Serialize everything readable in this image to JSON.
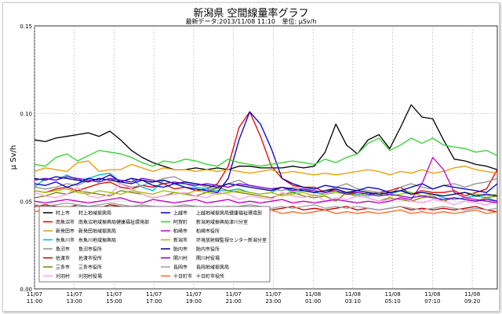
{
  "chart_data": {
    "type": "line",
    "title": "新潟県 空間線量率グラフ",
    "subtitle_updated": "最新データ:2013/11/08 11:10",
    "subtitle_unit": "単位: μSv/h",
    "ylabel": "μ Sv/h",
    "xlabel": "",
    "ylim": [
      0,
      0.15
    ],
    "y_ticks": [
      "0.00",
      "0.05",
      "0.10",
      "0.15"
    ],
    "x_ticks": [
      {
        "date": "11/07",
        "time": "11:00"
      },
      {
        "date": "11/07",
        "time": "13:00"
      },
      {
        "date": "11/07",
        "time": "15:00"
      },
      {
        "date": "11/07",
        "time": "17:00"
      },
      {
        "date": "11/07",
        "time": "19:00"
      },
      {
        "date": "11/07",
        "time": "21:00"
      },
      {
        "date": "11/07",
        "time": "23:00"
      },
      {
        "date": "11/08",
        "time": "01:00"
      },
      {
        "date": "11/08",
        "time": "03:10"
      },
      {
        "date": "11/08",
        "time": "05:10"
      },
      {
        "date": "11/08",
        "time": "07:10"
      },
      {
        "date": "11/08",
        "time": "09:20"
      }
    ],
    "grid": true,
    "legend_position": "bottom-left",
    "series": [
      {
        "name": "村上市",
        "station": "村上地域振興局",
        "color": "#000000",
        "values": [
          0.085,
          0.084,
          0.086,
          0.087,
          0.088,
          0.089,
          0.087,
          0.09,
          0.085,
          0.079,
          0.075,
          0.072,
          0.07,
          0.068,
          0.068,
          0.069,
          0.068,
          0.069,
          0.068,
          0.07,
          0.07,
          0.069,
          0.069,
          0.069,
          0.07,
          0.069,
          0.07,
          0.078,
          0.094,
          0.082,
          0.077,
          0.085,
          0.088,
          0.08,
          0.092,
          0.105,
          0.098,
          0.097,
          0.085,
          0.074,
          0.073,
          0.071,
          0.07,
          0.068
        ]
      },
      {
        "name": "南魚沼市",
        "station": "南魚沼地域振興局健康福祉環境部",
        "color": "#e00000",
        "values": [
          0.056,
          0.055,
          0.057,
          0.058,
          0.056,
          0.058,
          0.06,
          0.061,
          0.058,
          0.057,
          0.059,
          0.058,
          0.06,
          0.057,
          0.058,
          0.056,
          0.057,
          0.06,
          0.07,
          0.092,
          0.101,
          0.087,
          0.07,
          0.063,
          0.059,
          0.058,
          0.058,
          0.055,
          0.057,
          0.055,
          0.055,
          0.054,
          0.055,
          0.056,
          0.058,
          0.054,
          0.056,
          0.055,
          0.055,
          0.056,
          0.053,
          0.055,
          0.057,
          0.068
        ]
      },
      {
        "name": "新発田市",
        "station": "新発田地域振興局",
        "color": "#e89a00",
        "values": [
          0.067,
          0.069,
          0.068,
          0.067,
          0.072,
          0.073,
          0.067,
          0.068,
          0.068,
          0.071,
          0.069,
          0.067,
          0.069,
          0.068,
          0.068,
          0.067,
          0.068,
          0.067,
          0.068,
          0.067,
          0.066,
          0.067,
          0.068,
          0.066,
          0.067,
          0.066,
          0.065,
          0.066,
          0.065,
          0.066,
          0.067,
          0.068,
          0.067,
          0.065,
          0.067,
          0.066,
          0.068,
          0.066,
          0.067,
          0.069,
          0.07,
          0.068,
          0.067,
          0.066
        ]
      },
      {
        "name": "糸魚川市",
        "station": "糸魚川地域振興局",
        "color": "#00b0d0",
        "values": [
          0.058,
          0.063,
          0.062,
          0.065,
          0.062,
          0.063,
          0.065,
          0.066,
          0.061,
          0.063,
          0.058,
          0.056,
          0.062,
          0.06,
          0.06,
          0.058,
          0.057,
          0.056,
          0.056,
          0.057,
          0.055,
          0.054,
          0.055,
          0.058,
          0.055,
          0.056,
          0.055,
          0.054,
          0.055,
          0.055,
          0.054,
          0.053,
          0.055,
          0.054,
          0.056,
          0.055,
          0.053,
          0.054,
          0.052,
          0.051,
          0.052,
          0.053,
          0.052,
          0.05
        ]
      },
      {
        "name": "魚沼市",
        "station": "魚沼市役所",
        "color": "#909090",
        "values": [
          0.058,
          0.057,
          0.058,
          0.06,
          0.059,
          0.062,
          0.061,
          0.063,
          0.06,
          0.058,
          0.059,
          0.061,
          0.063,
          0.064,
          0.061,
          0.06,
          0.058,
          0.057,
          0.06,
          0.062,
          0.059,
          0.058,
          0.057,
          0.056,
          0.058,
          0.057,
          0.055,
          0.056,
          0.058,
          0.06,
          0.057,
          0.056,
          0.055,
          0.054,
          0.058,
          0.06,
          0.058,
          0.057,
          0.059,
          0.06,
          0.058,
          0.06,
          0.061,
          0.063
        ]
      },
      {
        "name": "佐渡市",
        "station": "佐渡市役所",
        "color": "#b80000",
        "values": [
          0.047,
          0.048,
          0.047,
          0.046,
          0.048,
          0.047,
          0.046,
          0.048,
          0.047,
          0.046,
          0.047,
          0.046,
          0.045,
          0.046,
          0.047,
          0.046,
          0.045,
          0.046,
          0.047,
          0.046,
          0.045,
          0.046,
          0.045,
          0.046,
          0.047,
          0.045,
          0.046,
          0.045,
          0.046,
          0.047,
          0.045,
          0.046,
          0.045,
          0.046,
          0.047,
          0.045,
          0.046,
          0.045,
          0.046,
          0.045,
          0.046,
          0.047,
          0.045,
          0.044
        ]
      },
      {
        "name": "三条市",
        "station": "三条市役所",
        "color": "#808000",
        "values": [
          0.052,
          0.053,
          0.055,
          0.054,
          0.056,
          0.055,
          0.054,
          0.053,
          0.056,
          0.055,
          0.054,
          0.052,
          0.053,
          0.055,
          0.054,
          0.053,
          0.055,
          0.058,
          0.056,
          0.055,
          0.054,
          0.053,
          0.052,
          0.054,
          0.055,
          0.053,
          0.052,
          0.053,
          0.05,
          0.055,
          0.053,
          0.052,
          0.05,
          0.052,
          0.051,
          0.05,
          0.052,
          0.053,
          0.05,
          0.052,
          0.051,
          0.05,
          0.052,
          0.053
        ]
      },
      {
        "name": "刈羽村",
        "station": "刈羽村役場",
        "color": "#ff9ee8",
        "values": [
          0.055,
          0.053,
          0.052,
          0.054,
          0.058,
          0.053,
          0.052,
          0.054,
          0.06,
          0.057,
          0.054,
          0.052,
          0.053,
          0.054,
          0.055,
          0.053,
          0.052,
          0.055,
          0.054,
          0.051,
          0.053,
          0.052,
          0.051,
          0.055,
          0.053,
          0.052,
          0.054,
          0.05,
          0.052,
          0.051,
          0.053,
          0.052,
          0.05,
          0.051,
          0.052,
          0.05,
          0.049,
          0.051,
          0.05,
          0.048,
          0.05,
          0.049,
          0.048,
          0.05
        ]
      },
      {
        "name": "上越市",
        "station": "上越地域振興局健康福祉環境部",
        "color": "#0000c8",
        "values": [
          0.06,
          0.059,
          0.061,
          0.058,
          0.06,
          0.063,
          0.062,
          0.065,
          0.061,
          0.06,
          0.062,
          0.059,
          0.058,
          0.06,
          0.058,
          0.057,
          0.056,
          0.055,
          0.063,
          0.085,
          0.101,
          0.094,
          0.08,
          0.063,
          0.06,
          0.058,
          0.057,
          0.059,
          0.058,
          0.057,
          0.056,
          0.058,
          0.057,
          0.055,
          0.056,
          0.058,
          0.06,
          0.057,
          0.059,
          0.058,
          0.057,
          0.056,
          0.055,
          0.06
        ]
      },
      {
        "name": "阿賀町",
        "station": "新潟地域振興局津川分室",
        "color": "#30d030",
        "values": [
          0.071,
          0.07,
          0.075,
          0.077,
          0.073,
          0.076,
          0.079,
          0.078,
          0.077,
          0.075,
          0.072,
          0.07,
          0.073,
          0.072,
          0.074,
          0.073,
          0.071,
          0.07,
          0.074,
          0.072,
          0.071,
          0.07,
          0.071,
          0.072,
          0.073,
          0.072,
          0.071,
          0.074,
          0.072,
          0.075,
          0.077,
          0.083,
          0.086,
          0.079,
          0.082,
          0.086,
          0.083,
          0.086,
          0.082,
          0.081,
          0.08,
          0.078,
          0.079,
          0.076
        ]
      },
      {
        "name": "柏崎市",
        "station": "柏崎市役所",
        "color": "#c000c0",
        "values": [
          0.05,
          0.049,
          0.05,
          0.051,
          0.05,
          0.049,
          0.05,
          0.051,
          0.052,
          0.05,
          0.049,
          0.051,
          0.05,
          0.049,
          0.05,
          0.051,
          0.049,
          0.05,
          0.051,
          0.049,
          0.05,
          0.049,
          0.05,
          0.051,
          0.049,
          0.05,
          0.049,
          0.05,
          0.051,
          0.05,
          0.049,
          0.05,
          0.049,
          0.05,
          0.052,
          0.051,
          0.06,
          0.075,
          0.068,
          0.055,
          0.052,
          0.051,
          0.05,
          0.049
        ]
      },
      {
        "name": "新潟市",
        "station": "环境放射線監視センター新潟分室",
        "color": "#a0c000",
        "values": [
          0.056,
          0.055,
          0.056,
          0.057,
          0.055,
          0.054,
          0.056,
          0.055,
          0.054,
          0.056,
          0.055,
          0.054,
          0.056,
          0.055,
          0.054,
          0.056,
          0.055,
          0.054,
          0.055,
          0.056,
          0.055,
          0.054,
          0.055,
          0.053,
          0.054,
          0.055,
          0.053,
          0.054,
          0.055,
          0.054,
          0.053,
          0.055,
          0.054,
          0.053,
          0.054,
          0.055,
          0.053,
          0.054,
          0.053,
          0.054,
          0.055,
          0.054,
          0.053,
          0.054
        ]
      },
      {
        "name": "胎内市",
        "station": "胎内市役所",
        "color": "#000080",
        "values": [
          0.063,
          0.062,
          0.064,
          0.063,
          0.062,
          0.061,
          0.063,
          0.062,
          0.061,
          0.063,
          0.062,
          0.061,
          0.062,
          0.06,
          0.061,
          0.06,
          0.059,
          0.058,
          0.06,
          0.059,
          0.058,
          0.057,
          0.056,
          0.058,
          0.057,
          0.056,
          0.055,
          0.056,
          0.057,
          0.055,
          0.056,
          0.055,
          0.054,
          0.055,
          0.056,
          0.054,
          0.055,
          0.054,
          0.053,
          0.054,
          0.055,
          0.053,
          0.054,
          0.053
        ]
      },
      {
        "name": "関川村",
        "station": "関川村役場",
        "color": "#7000d0",
        "values": [
          0.062,
          0.063,
          0.062,
          0.064,
          0.063,
          0.062,
          0.061,
          0.063,
          0.062,
          0.061,
          0.063,
          0.062,
          0.06,
          0.061,
          0.06,
          0.059,
          0.06,
          0.059,
          0.058,
          0.06,
          0.059,
          0.058,
          0.057,
          0.058,
          0.056,
          0.057,
          0.056,
          0.055,
          0.056,
          0.054,
          0.055,
          0.054,
          0.053,
          0.054,
          0.053,
          0.052,
          0.053,
          0.052,
          0.051,
          0.052,
          0.051,
          0.05,
          0.051,
          0.05
        ]
      },
      {
        "name": "長岡市",
        "station": "長岡地域振興局",
        "color": "#a0a0a0",
        "values": [
          0.048,
          0.047,
          0.048,
          0.049,
          0.048,
          0.047,
          0.048,
          0.049,
          0.048,
          0.047,
          0.048,
          0.047,
          0.046,
          0.047,
          0.048,
          0.047,
          0.046,
          0.047,
          0.046,
          0.047,
          0.048,
          0.047,
          0.046,
          0.047,
          0.046,
          0.047,
          0.048,
          0.046,
          0.047,
          0.046,
          0.047,
          0.046,
          0.045,
          0.046,
          0.047,
          0.046,
          0.045,
          0.046,
          0.047,
          0.046,
          0.045,
          0.046,
          0.045,
          0.046
        ]
      },
      {
        "name": "十日町市",
        "station": "十日町市役所",
        "color": "#ff6820",
        "values": [
          0.044,
          0.045,
          0.044,
          0.045,
          0.046,
          0.044,
          0.045,
          0.044,
          0.045,
          0.044,
          0.045,
          0.044,
          0.043,
          0.044,
          0.045,
          0.044,
          0.043,
          0.044,
          0.045,
          0.044,
          0.043,
          0.044,
          0.045,
          0.043,
          0.044,
          0.043,
          0.044,
          0.045,
          0.043,
          0.044,
          0.043,
          0.044,
          0.043,
          0.044,
          0.045,
          0.043,
          0.044,
          0.043,
          0.044,
          0.043,
          0.044,
          0.045,
          0.043,
          0.044
        ]
      }
    ]
  }
}
